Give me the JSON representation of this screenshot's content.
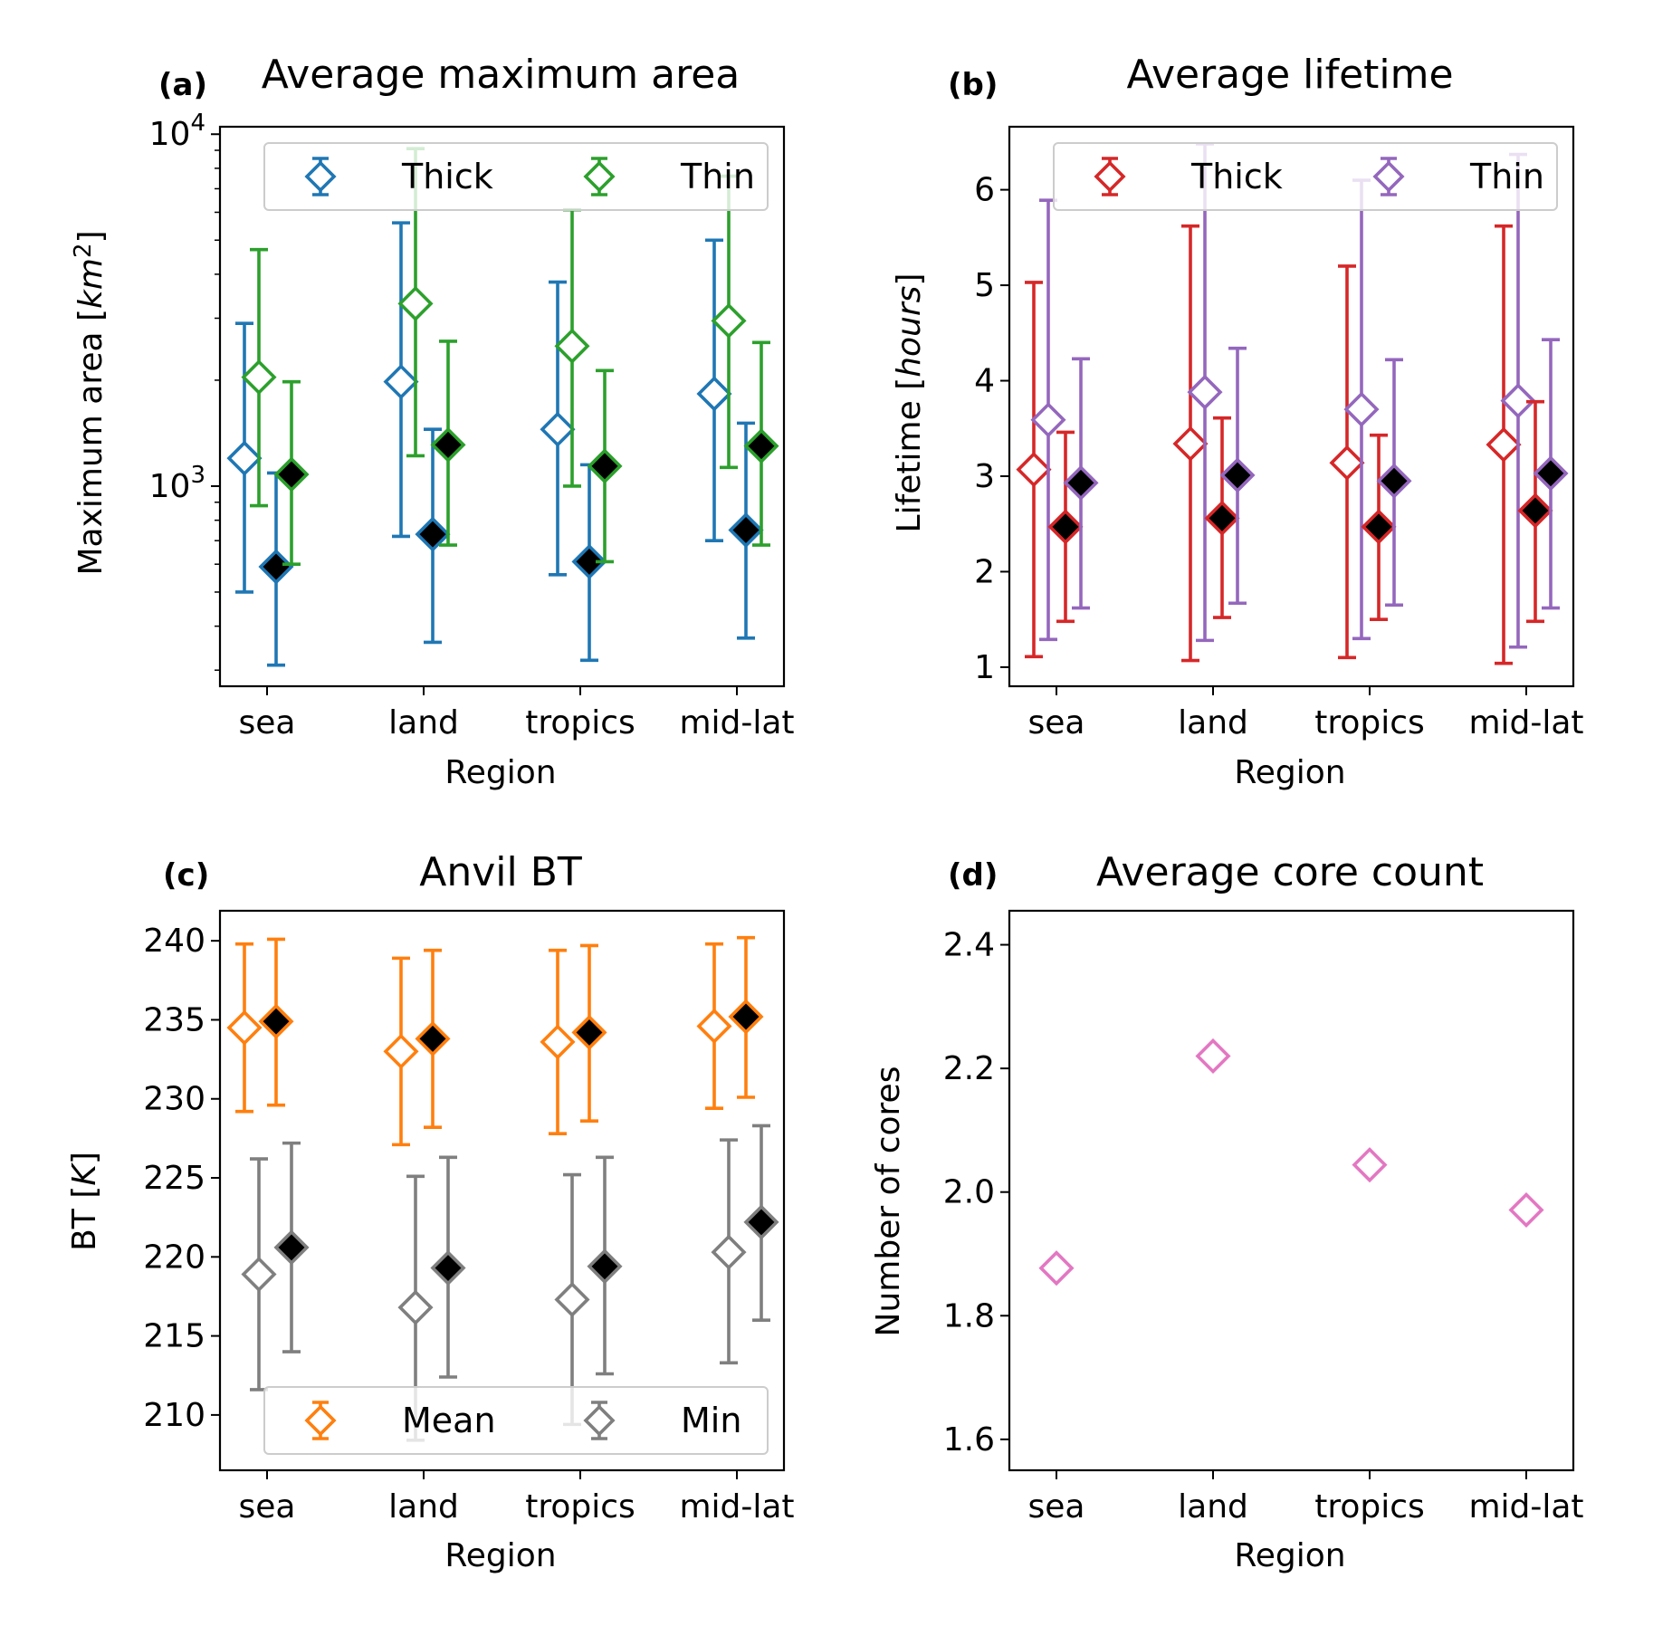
{
  "figure": {
    "panels": [
      {
        "id": "a",
        "tag": "(a)",
        "title": "Average maximum area",
        "xlabel": "Region"
      },
      {
        "id": "b",
        "tag": "(b)",
        "title": "Average lifetime",
        "xlabel": "Region"
      },
      {
        "id": "c",
        "tag": "(c)",
        "title": "Anvil BT",
        "xlabel": "Region"
      },
      {
        "id": "d",
        "tag": "(d)",
        "title": "Average core count",
        "xlabel": "Region"
      }
    ]
  },
  "chart_data": [
    {
      "id": "a",
      "type": "scatter",
      "title": "Average maximum area",
      "tag": "(a)",
      "xlabel": "Region",
      "ylabel": "Maximum area [km²]",
      "yscale": "log",
      "ylim": [
        270,
        10500
      ],
      "yticks": [
        {
          "value": 1000,
          "base": "10",
          "exp": "3"
        },
        {
          "value": 10000,
          "base": "10",
          "exp": "4"
        }
      ],
      "categories": [
        "sea",
        "land",
        "tropics",
        "mid-lat"
      ],
      "grid": false,
      "legend": {
        "placement": "top-right",
        "entries": [
          "Thick",
          "Thin"
        ]
      },
      "series": [
        {
          "name": "Thick",
          "color": "#1f77b4",
          "points": [
            {
              "y": 1200,
              "ylow": 500,
              "yhigh": 2900
            },
            {
              "y": 1980,
              "ylow": 720,
              "yhigh": 5600
            },
            {
              "y": 1450,
              "ylow": 560,
              "yhigh": 3800
            },
            {
              "y": 1830,
              "ylow": 700,
              "yhigh": 5000
            }
          ]
        },
        {
          "color": "#1f77b4",
          "filled": true,
          "points": [
            {
              "y": 590,
              "ylow": 310,
              "yhigh": 1090
            },
            {
              "y": 730,
              "ylow": 360,
              "yhigh": 1450
            },
            {
              "y": 610,
              "ylow": 320,
              "yhigh": 1150
            },
            {
              "y": 750,
              "ylow": 370,
              "yhigh": 1510
            }
          ]
        },
        {
          "name": "Thin",
          "color": "#2ca02c",
          "points": [
            {
              "y": 2040,
              "ylow": 880,
              "yhigh": 4700
            },
            {
              "y": 3300,
              "ylow": 1220,
              "yhigh": 9100
            },
            {
              "y": 2500,
              "ylow": 1000,
              "yhigh": 6100
            },
            {
              "y": 2950,
              "ylow": 1130,
              "yhigh": 7600
            }
          ]
        },
        {
          "color": "#2ca02c",
          "filled": true,
          "points": [
            {
              "y": 1080,
              "ylow": 600,
              "yhigh": 1980
            },
            {
              "y": 1310,
              "ylow": 680,
              "yhigh": 2580
            },
            {
              "y": 1140,
              "ylow": 610,
              "yhigh": 2130
            },
            {
              "y": 1300,
              "ylow": 680,
              "yhigh": 2560
            }
          ]
        }
      ]
    },
    {
      "id": "b",
      "type": "scatter",
      "title": "Average lifetime",
      "tag": "(b)",
      "xlabel": "Region",
      "ylabel": "Lifetime [hours]",
      "ylim": [
        0.8,
        6.66
      ],
      "yticks": [
        1,
        2,
        3,
        4,
        5,
        6
      ],
      "categories": [
        "sea",
        "land",
        "tropics",
        "mid-lat"
      ],
      "grid": false,
      "legend": {
        "placement": "top-right",
        "entries": [
          "Thick",
          "Thin"
        ]
      },
      "series": [
        {
          "name": "Thick",
          "color": "#d62728",
          "points": [
            {
              "y": 3.07,
              "ylow": 1.11,
              "yhigh": 5.03
            },
            {
              "y": 3.34,
              "ylow": 1.07,
              "yhigh": 5.62
            },
            {
              "y": 3.14,
              "ylow": 1.1,
              "yhigh": 5.2
            },
            {
              "y": 3.33,
              "ylow": 1.04,
              "yhigh": 5.62
            }
          ]
        },
        {
          "color": "#d62728",
          "filled": true,
          "points": [
            {
              "y": 2.47,
              "ylow": 1.48,
              "yhigh": 3.46
            },
            {
              "y": 2.56,
              "ylow": 1.52,
              "yhigh": 3.61
            },
            {
              "y": 2.47,
              "ylow": 1.5,
              "yhigh": 3.43
            },
            {
              "y": 2.64,
              "ylow": 1.48,
              "yhigh": 3.78
            }
          ]
        },
        {
          "name": "Thin",
          "color": "#9467bd",
          "points": [
            {
              "y": 3.59,
              "ylow": 1.29,
              "yhigh": 5.89
            },
            {
              "y": 3.88,
              "ylow": 1.28,
              "yhigh": 6.48
            },
            {
              "y": 3.7,
              "ylow": 1.3,
              "yhigh": 6.1
            },
            {
              "y": 3.79,
              "ylow": 1.21,
              "yhigh": 6.37
            }
          ]
        },
        {
          "color": "#9467bd",
          "filled": true,
          "points": [
            {
              "y": 2.93,
              "ylow": 1.62,
              "yhigh": 4.23
            },
            {
              "y": 3.01,
              "ylow": 1.67,
              "yhigh": 4.34
            },
            {
              "y": 2.95,
              "ylow": 1.65,
              "yhigh": 4.22
            },
            {
              "y": 3.03,
              "ylow": 1.62,
              "yhigh": 4.43
            }
          ]
        }
      ]
    },
    {
      "id": "c",
      "type": "scatter",
      "title": "Anvil BT",
      "tag": "(c)",
      "xlabel": "Region",
      "ylabel": "BT [K]",
      "ylim": [
        206.5,
        241.9
      ],
      "yticks": [
        210,
        215,
        220,
        225,
        230,
        235,
        240
      ],
      "categories": [
        "sea",
        "land",
        "tropics",
        "mid-lat"
      ],
      "grid": false,
      "legend": {
        "placement": "bottom-right",
        "entries": [
          "Mean",
          "Min"
        ]
      },
      "series": [
        {
          "name": "Mean",
          "color": "#ff7f0e",
          "points": [
            {
              "y": 234.5,
              "ylow": 229.2,
              "yhigh": 239.8
            },
            {
              "y": 233.0,
              "ylow": 227.1,
              "yhigh": 238.9
            },
            {
              "y": 233.6,
              "ylow": 227.8,
              "yhigh": 239.4
            },
            {
              "y": 234.6,
              "ylow": 229.4,
              "yhigh": 239.8
            }
          ]
        },
        {
          "color": "#ff7f0e",
          "filled": true,
          "points": [
            {
              "y": 234.9,
              "ylow": 229.6,
              "yhigh": 240.1
            },
            {
              "y": 233.8,
              "ylow": 228.2,
              "yhigh": 239.4
            },
            {
              "y": 234.2,
              "ylow": 228.6,
              "yhigh": 239.7
            },
            {
              "y": 235.2,
              "ylow": 230.1,
              "yhigh": 240.2
            }
          ]
        },
        {
          "name": "Min",
          "color": "#7f7f7f",
          "points": [
            {
              "y": 218.9,
              "ylow": 211.6,
              "yhigh": 226.2
            },
            {
              "y": 216.8,
              "ylow": 208.4,
              "yhigh": 225.1
            },
            {
              "y": 217.3,
              "ylow": 209.4,
              "yhigh": 225.2
            },
            {
              "y": 220.3,
              "ylow": 213.3,
              "yhigh": 227.4
            }
          ]
        },
        {
          "color": "#7f7f7f",
          "filled": true,
          "points": [
            {
              "y": 220.6,
              "ylow": 214.0,
              "yhigh": 227.2
            },
            {
              "y": 219.3,
              "ylow": 212.4,
              "yhigh": 226.3
            },
            {
              "y": 219.4,
              "ylow": 212.6,
              "yhigh": 226.3
            },
            {
              "y": 222.2,
              "ylow": 216.0,
              "yhigh": 228.3
            }
          ]
        }
      ]
    },
    {
      "id": "d",
      "type": "scatter",
      "title": "Average core count",
      "tag": "(d)",
      "xlabel": "Region",
      "ylabel": "Number of cores",
      "ylim": [
        1.55,
        2.455
      ],
      "yticks": [
        1.6,
        1.8,
        2.0,
        2.2,
        2.4
      ],
      "categories": [
        "sea",
        "land",
        "tropics",
        "mid-lat"
      ],
      "grid": false,
      "series": [
        {
          "color": "#e377c2",
          "points": [
            {
              "y": 1.877
            },
            {
              "y": 2.22
            },
            {
              "y": 2.044
            },
            {
              "y": 1.971
            }
          ]
        }
      ]
    }
  ]
}
